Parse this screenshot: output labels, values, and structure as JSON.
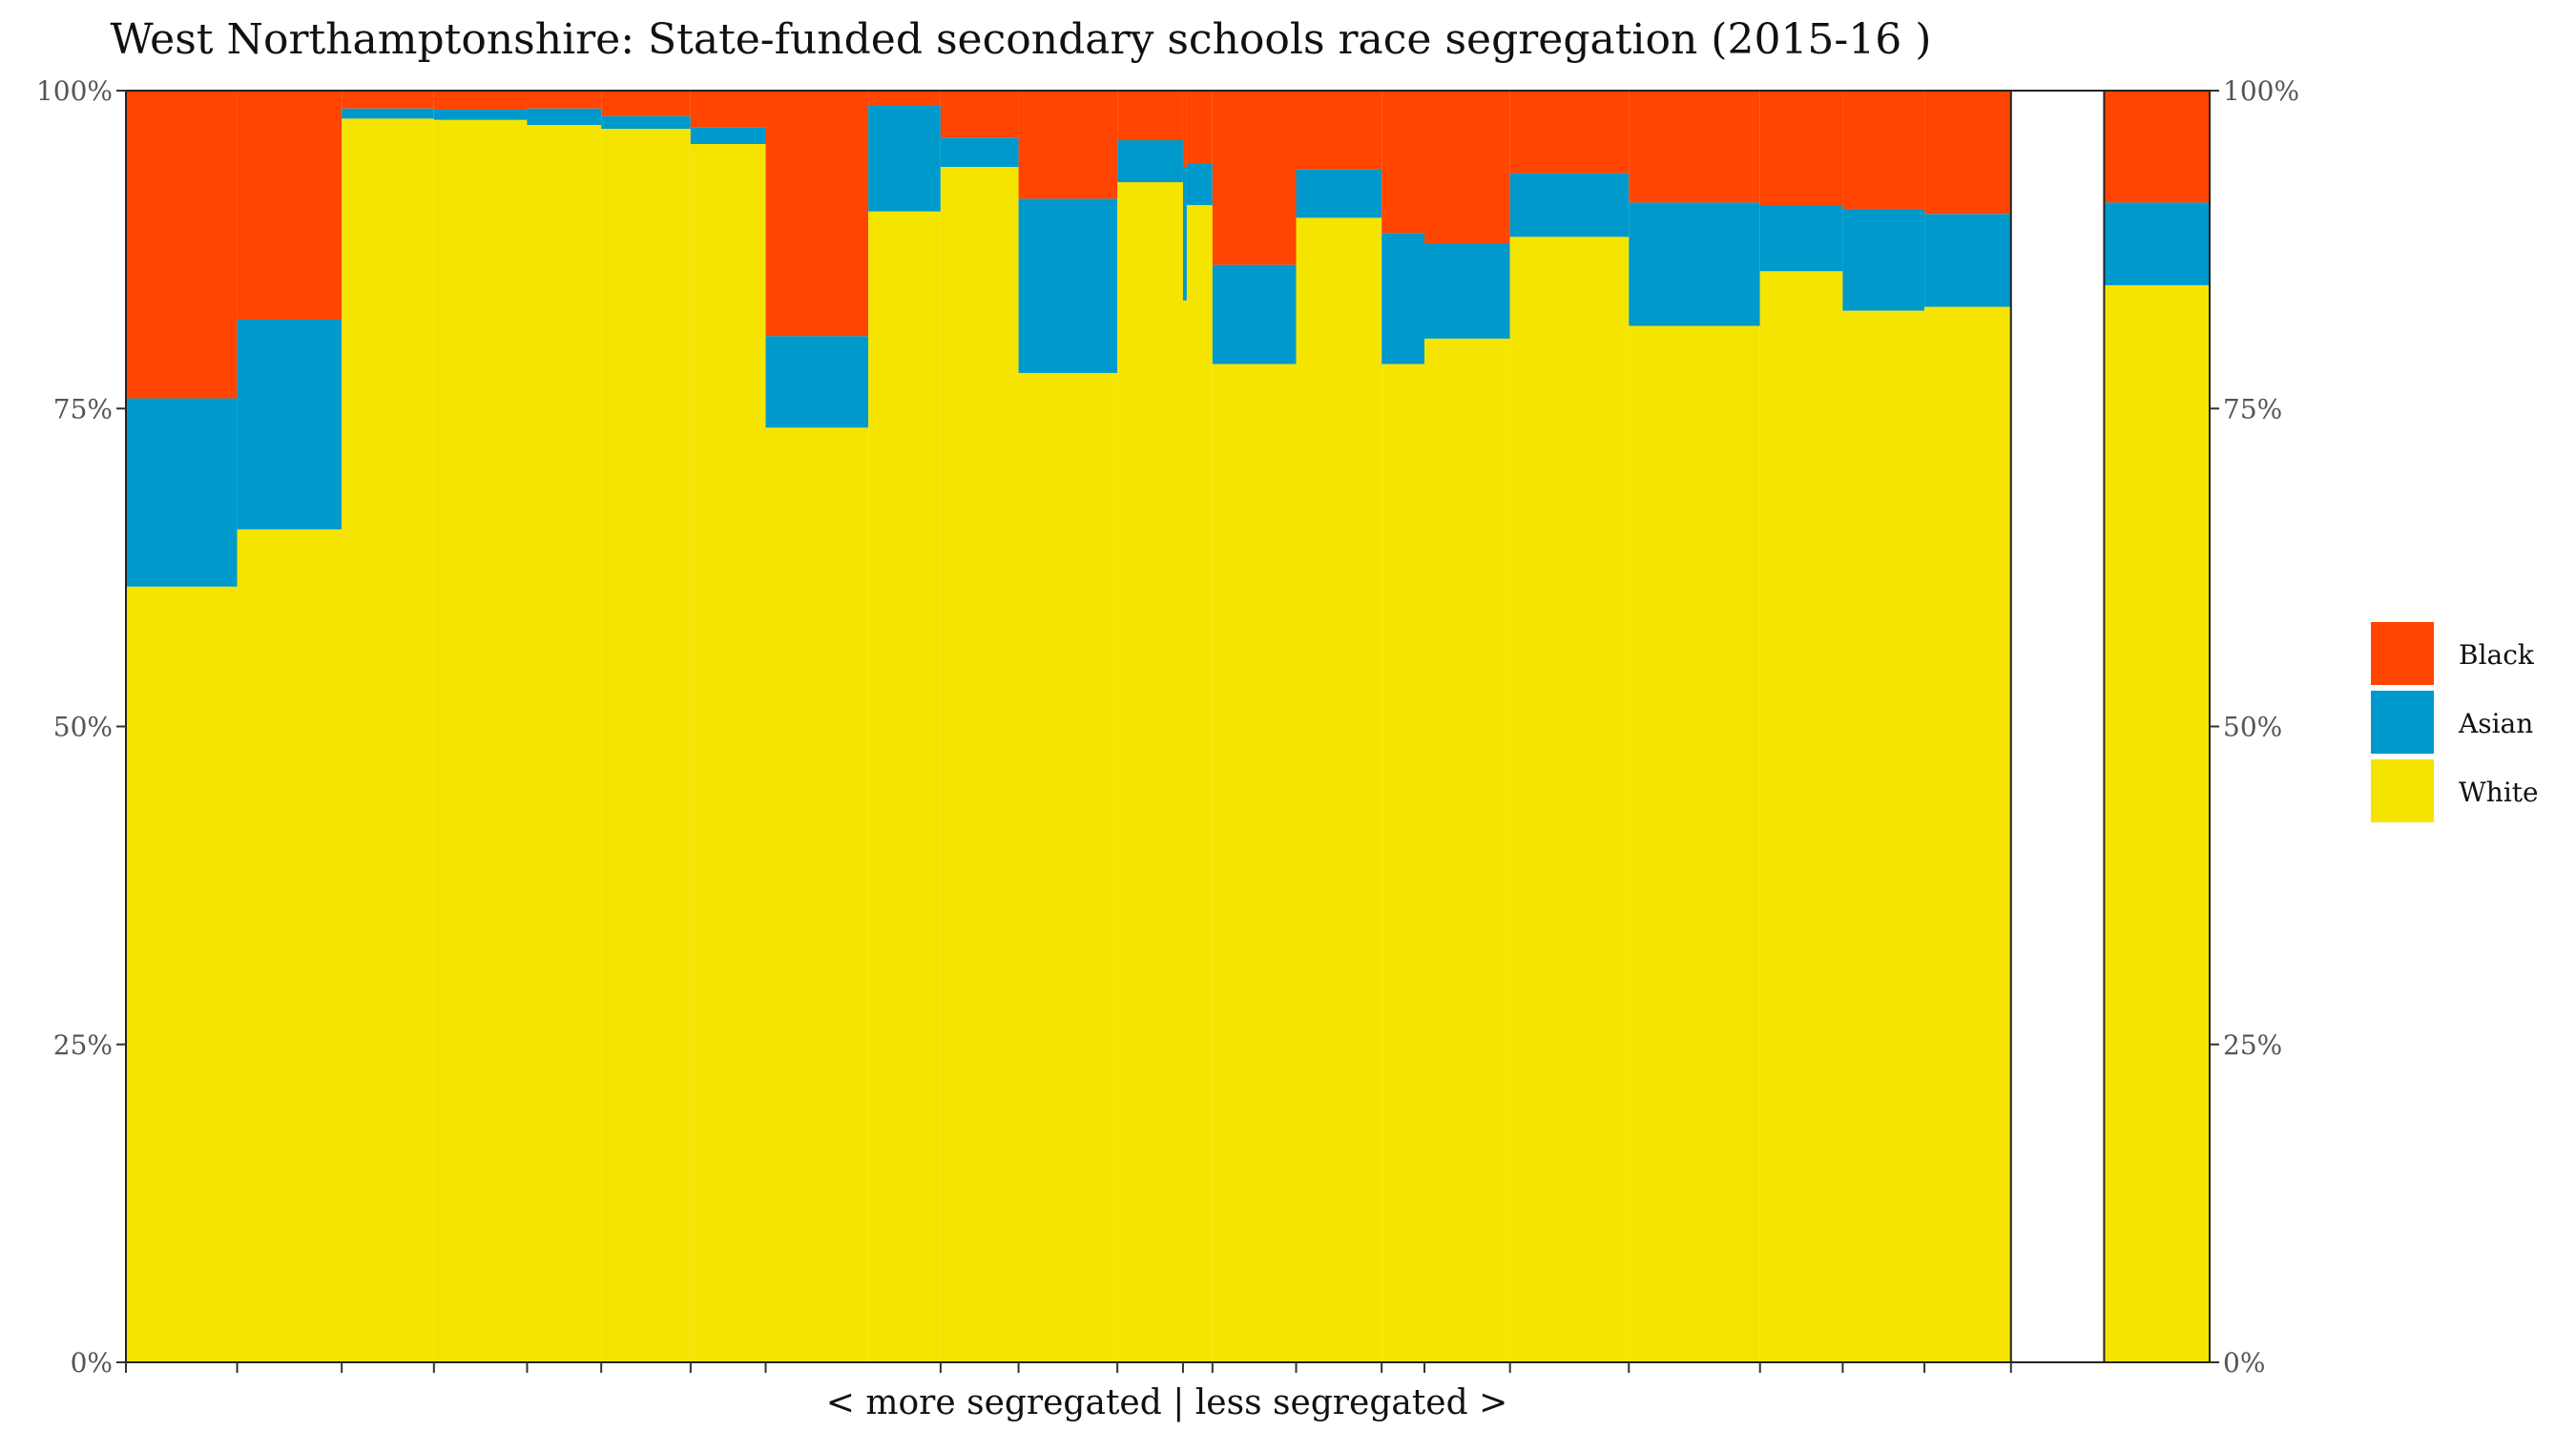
{
  "chart_data": {
    "type": "bar",
    "subtype": "stacked-variable-width (mosaic)",
    "title": "West Northamptonshire: State-funded secondary schools race segregation (2015-16 )",
    "xlabel": "< more segregated | less segregated >",
    "ylabel": "",
    "ylim": [
      0,
      100
    ],
    "yticks": [
      "0%",
      "25%",
      "50%",
      "75%",
      "100%"
    ],
    "grid": false,
    "legend_position": "right",
    "colors": {
      "Black": "#FF4500",
      "Asian": "#0099CC",
      "White": "#F5E400"
    },
    "legend": [
      "Black",
      "Asian",
      "White"
    ],
    "x_extent": [
      0,
      2192
    ],
    "schools": [
      {
        "x0": 0,
        "x1": 117,
        "white": 61.0,
        "asian": 14.8
      },
      {
        "x0": 117,
        "x1": 227,
        "white": 65.5,
        "asian": 16.5
      },
      {
        "x0": 227,
        "x1": 324,
        "white": 97.8,
        "asian": 0.8
      },
      {
        "x0": 324,
        "x1": 422,
        "white": 97.7,
        "asian": 0.8
      },
      {
        "x0": 422,
        "x1": 500,
        "white": 97.3,
        "asian": 1.3
      },
      {
        "x0": 500,
        "x1": 594,
        "white": 97.0,
        "asian": 1.0
      },
      {
        "x0": 594,
        "x1": 673,
        "white": 95.8,
        "asian": 1.3
      },
      {
        "x0": 673,
        "x1": 781,
        "white": 73.5,
        "asian": 7.2
      },
      {
        "x0": 781,
        "x1": 857,
        "white": 90.5,
        "asian": 8.3
      },
      {
        "x0": 857,
        "x1": 939,
        "white": 94.0,
        "asian": 2.3
      },
      {
        "x0": 939,
        "x1": 1043,
        "white": 77.8,
        "asian": 13.7
      },
      {
        "x0": 1043,
        "x1": 1112,
        "white": 92.8,
        "asian": 3.3
      },
      {
        "x0": 1112,
        "x1": 1116,
        "white": 83.5,
        "asian": 10.5
      },
      {
        "x0": 1116,
        "x1": 1143,
        "white": 91.0,
        "asian": 3.3
      },
      {
        "x0": 1143,
        "x1": 1231,
        "white": 78.5,
        "asian": 7.8
      },
      {
        "x0": 1231,
        "x1": 1321,
        "white": 90.0,
        "asian": 3.8
      },
      {
        "x0": 1321,
        "x1": 1366,
        "white": 78.5,
        "asian": 10.3
      },
      {
        "x0": 1366,
        "x1": 1456,
        "white": 80.5,
        "asian": 7.5
      },
      {
        "x0": 1456,
        "x1": 1581,
        "white": 88.5,
        "asian": 5.0
      },
      {
        "x0": 1581,
        "x1": 1719,
        "white": 81.5,
        "asian": 9.7
      },
      {
        "x0": 1719,
        "x1": 1806,
        "white": 85.8,
        "asian": 5.2
      },
      {
        "x0": 1806,
        "x1": 1892,
        "white": 82.7,
        "asian": 8.0
      },
      {
        "x0": 1892,
        "x1": 1983,
        "white": 83.0,
        "asian": 7.3
      },
      {
        "x0": 2081,
        "x1": 2192,
        "white": 84.7,
        "asian": 6.5
      }
    ],
    "gap": {
      "x0": 1983,
      "x1": 2081
    },
    "x_ticks": [
      0,
      117,
      227,
      324,
      422,
      500,
      594,
      673,
      857,
      939,
      1043,
      1112,
      1143,
      1231,
      1321,
      1366,
      1456,
      1581,
      1719,
      1806,
      1892,
      1983
    ]
  }
}
